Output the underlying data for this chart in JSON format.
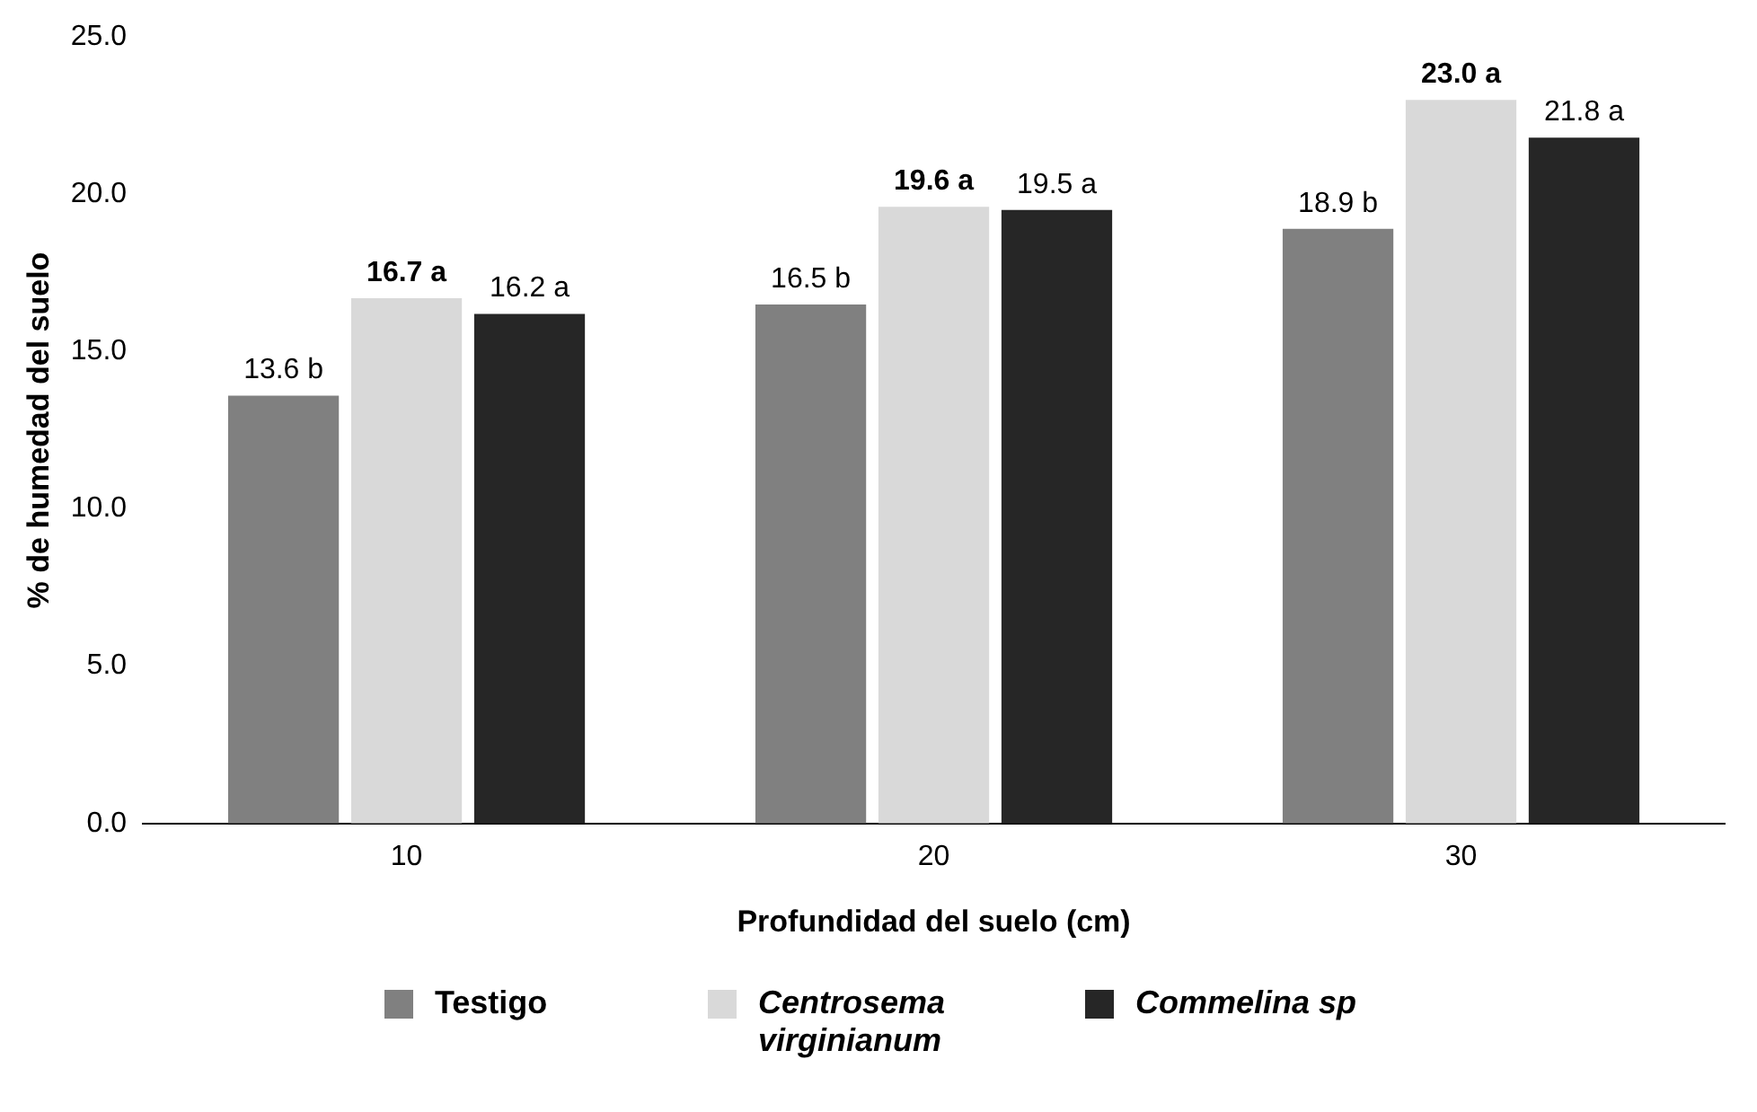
{
  "chart_data": {
    "type": "bar",
    "xlabel": "Profundidad del suelo (cm)",
    "ylabel": "% de humedad del suelo",
    "categories": [
      "10",
      "20",
      "30"
    ],
    "series": [
      {
        "name": "Testigo",
        "color": "#808080",
        "values": [
          13.6,
          16.5,
          18.9
        ],
        "value_labels": [
          "13.6 b",
          "16.5 b",
          "18.9 b"
        ]
      },
      {
        "name": "Centrosema virginianum",
        "color": "#d9d9d9",
        "values": [
          16.7,
          19.6,
          23.0
        ],
        "value_labels": [
          "16.7 a",
          "19.6 a",
          "23.0 a"
        ]
      },
      {
        "name": "Commelina sp",
        "color": "#262626",
        "values": [
          16.2,
          19.5,
          21.8
        ],
        "value_labels": [
          "16.2 a",
          "19.5 a",
          "21.8 a"
        ]
      }
    ],
    "ylim": [
      0,
      25
    ],
    "yticks": [
      {
        "value": 0,
        "label": "0.0"
      },
      {
        "value": 5,
        "label": "5.0"
      },
      {
        "value": 10,
        "label": "10.0"
      },
      {
        "value": 15,
        "label": "15.0"
      },
      {
        "value": 20,
        "label": "20.0"
      },
      {
        "value": 25,
        "label": "25.0"
      }
    ],
    "grid": false,
    "legend": "bottom"
  }
}
